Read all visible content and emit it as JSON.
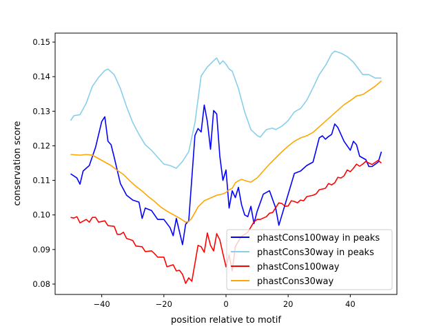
{
  "chart_data": {
    "type": "line",
    "title": "",
    "xlabel": "position relative to motif",
    "ylabel": "conservation score",
    "xlim": [
      -55,
      55
    ],
    "ylim": [
      0.077,
      0.1526
    ],
    "xticks": [
      -40,
      -20,
      0,
      20,
      40
    ],
    "xtick_labels": [
      "−40",
      "−20",
      "0",
      "20",
      "40"
    ],
    "yticks": [
      0.08,
      0.09,
      0.1,
      0.11,
      0.12,
      0.13,
      0.14,
      0.15
    ],
    "ytick_labels": [
      "0.08",
      "0.09",
      "0.10",
      "0.11",
      "0.12",
      "0.13",
      "0.14",
      "0.15"
    ],
    "grid": false,
    "legend_position": "lower-right",
    "series": [
      {
        "name": "phastCons100way in peaks",
        "color": "#0000ff",
        "x": [
          -50,
          -48,
          -47,
          -46,
          -44,
          -42,
          -40,
          -39,
          -38,
          -37,
          -36,
          -34,
          -32,
          -30,
          -28,
          -27,
          -26,
          -24,
          -22,
          -20,
          -18,
          -17,
          -16,
          -14,
          -13,
          -12,
          -10,
          -9,
          -8,
          -7,
          -6,
          -5,
          -4,
          -3,
          -2,
          -1,
          0,
          1,
          2,
          3,
          4,
          5,
          6,
          7,
          8,
          9,
          10,
          12,
          14,
          16,
          17,
          18,
          20,
          22,
          24,
          26,
          28,
          30,
          31,
          32,
          33,
          34,
          35,
          36,
          38,
          40,
          41,
          42,
          43,
          45,
          46,
          47,
          49,
          50
        ],
        "y": [
          0.1119,
          0.1107,
          0.1089,
          0.1127,
          0.1143,
          0.1195,
          0.127,
          0.1284,
          0.1213,
          0.1203,
          0.1167,
          0.1091,
          0.1057,
          0.1043,
          0.1037,
          0.099,
          0.102,
          0.1013,
          0.0987,
          0.0987,
          0.0963,
          0.094,
          0.099,
          0.0914,
          0.0973,
          0.0983,
          0.123,
          0.125,
          0.124,
          0.1318,
          0.127,
          0.119,
          0.1302,
          0.1292,
          0.117,
          0.11,
          0.113,
          0.102,
          0.107,
          0.105,
          0.108,
          0.103,
          0.1,
          0.0995,
          0.1025,
          0.0975,
          0.101,
          0.106,
          0.107,
          0.102,
          0.097,
          0.1,
          0.106,
          0.112,
          0.1127,
          0.1143,
          0.1153,
          0.1223,
          0.1229,
          0.1219,
          0.1227,
          0.1233,
          0.1263,
          0.1253,
          0.1213,
          0.1187,
          0.1213,
          0.1203,
          0.117,
          0.116,
          0.114,
          0.114,
          0.1153,
          0.1183
        ]
      },
      {
        "name": "phastCons30way in peaks",
        "color": "#87ceeb",
        "x": [
          -50,
          -49,
          -47,
          -45,
          -43,
          -41,
          -39,
          -38,
          -36,
          -34,
          -32,
          -30,
          -28,
          -26,
          -24,
          -22,
          -20,
          -18,
          -16,
          -14,
          -12,
          -10,
          -8,
          -6,
          -4,
          -3,
          -2,
          -1,
          0,
          1,
          2,
          4,
          6,
          8,
          10,
          11,
          13,
          15,
          16,
          18,
          20,
          22,
          24,
          26,
          28,
          30,
          32,
          34,
          35,
          37,
          39,
          41,
          43,
          44,
          46,
          48,
          50
        ],
        "y": [
          0.1273,
          0.1287,
          0.129,
          0.1323,
          0.1372,
          0.1398,
          0.1418,
          0.1422,
          0.1406,
          0.1366,
          0.1313,
          0.1267,
          0.1233,
          0.1203,
          0.1187,
          0.1167,
          0.1147,
          0.1143,
          0.1135,
          0.1155,
          0.1183,
          0.1267,
          0.1402,
          0.1428,
          0.1446,
          0.1454,
          0.1436,
          0.1446,
          0.1436,
          0.1422,
          0.1416,
          0.1366,
          0.1298,
          0.1247,
          0.123,
          0.1225,
          0.1247,
          0.1251,
          0.1247,
          0.1257,
          0.1273,
          0.1298,
          0.1308,
          0.1332,
          0.1368,
          0.1406,
          0.1432,
          0.1466,
          0.1474,
          0.1468,
          0.1458,
          0.1442,
          0.1418,
          0.1406,
          0.1406,
          0.1396,
          0.1396
        ]
      },
      {
        "name": "phastCons100way",
        "color": "#ff0000",
        "x": [
          -50,
          -49,
          -48,
          -47,
          -45,
          -44,
          -43,
          -42,
          -41,
          -39,
          -38,
          -36,
          -35,
          -34,
          -33,
          -32,
          -30,
          -29,
          -27,
          -26,
          -24,
          -23,
          -22,
          -20,
          -19,
          -17,
          -16,
          -15,
          -14,
          -13,
          -12,
          -11,
          -10,
          -9,
          -8,
          -7,
          -6,
          -5,
          -4,
          -3,
          -2,
          -1,
          0,
          1,
          2,
          3,
          4,
          5,
          7,
          9,
          10,
          11,
          12,
          13,
          14,
          15,
          16,
          17,
          18,
          19,
          20,
          21,
          22,
          23,
          24,
          25,
          26,
          28,
          29,
          30,
          32,
          33,
          34,
          35,
          36,
          37,
          38,
          39,
          40,
          41,
          42,
          43,
          44,
          45,
          46,
          47,
          48,
          49,
          50
        ],
        "y": [
          0.0993,
          0.0991,
          0.0995,
          0.0977,
          0.0987,
          0.0979,
          0.0993,
          0.0993,
          0.0979,
          0.0983,
          0.0969,
          0.0967,
          0.0944,
          0.0944,
          0.095,
          0.0932,
          0.0926,
          0.091,
          0.0908,
          0.0894,
          0.0896,
          0.0888,
          0.0878,
          0.0878,
          0.085,
          0.0856,
          0.0838,
          0.084,
          0.0828,
          0.0802,
          0.0818,
          0.0808,
          0.086,
          0.0912,
          0.0908,
          0.0892,
          0.0948,
          0.0912,
          0.0896,
          0.0946,
          0.0928,
          0.0888,
          0.085,
          0.0884,
          0.0838,
          0.0908,
          0.0924,
          0.0938,
          0.095,
          0.098,
          0.0987,
          0.0987,
          0.0991,
          0.0995,
          0.1005,
          0.1007,
          0.1021,
          0.1035,
          0.1033,
          0.1025,
          0.1026,
          0.1041,
          0.1039,
          0.1035,
          0.1043,
          0.1041,
          0.1053,
          0.1057,
          0.1061,
          0.1073,
          0.1077,
          0.1091,
          0.1087,
          0.1093,
          0.1109,
          0.1107,
          0.1113,
          0.113,
          0.1125,
          0.1135,
          0.1147,
          0.1141,
          0.1147,
          0.1155,
          0.115,
          0.1146,
          0.1152,
          0.1158,
          0.115
        ]
      },
      {
        "name": "phastCons30way",
        "color": "#ffa500",
        "x": [
          -50,
          -47,
          -45,
          -43,
          -41,
          -39,
          -37,
          -35,
          -33,
          -31,
          -29,
          -27,
          -25,
          -23,
          -21,
          -19,
          -17,
          -15,
          -13,
          -12,
          -11,
          -9,
          -7,
          -5,
          -3,
          -1,
          0,
          1,
          2,
          3,
          4,
          5,
          7,
          8,
          10,
          12,
          14,
          16,
          18,
          20,
          22,
          24,
          26,
          28,
          30,
          32,
          34,
          36,
          38,
          40,
          42,
          44,
          46,
          48,
          50
        ],
        "y": [
          0.1175,
          0.1173,
          0.1175,
          0.1173,
          0.1163,
          0.1153,
          0.1143,
          0.1129,
          0.1117,
          0.1099,
          0.1083,
          0.1069,
          0.1053,
          0.1039,
          0.1023,
          0.1011,
          0.1001,
          0.0991,
          0.0979,
          0.0981,
          0.0991,
          0.1023,
          0.1041,
          0.1049,
          0.1057,
          0.1061,
          0.1065,
          0.1073,
          0.1077,
          0.1093,
          0.1099,
          0.1103,
          0.1097,
          0.1095,
          0.1107,
          0.1127,
          0.1147,
          0.1165,
          0.1183,
          0.1199,
          0.1213,
          0.1223,
          0.1229,
          0.1239,
          0.1255,
          0.1271,
          0.1287,
          0.1303,
          0.1319,
          0.1331,
          0.1344,
          0.1348,
          0.136,
          0.1372,
          0.1388
        ]
      }
    ]
  }
}
